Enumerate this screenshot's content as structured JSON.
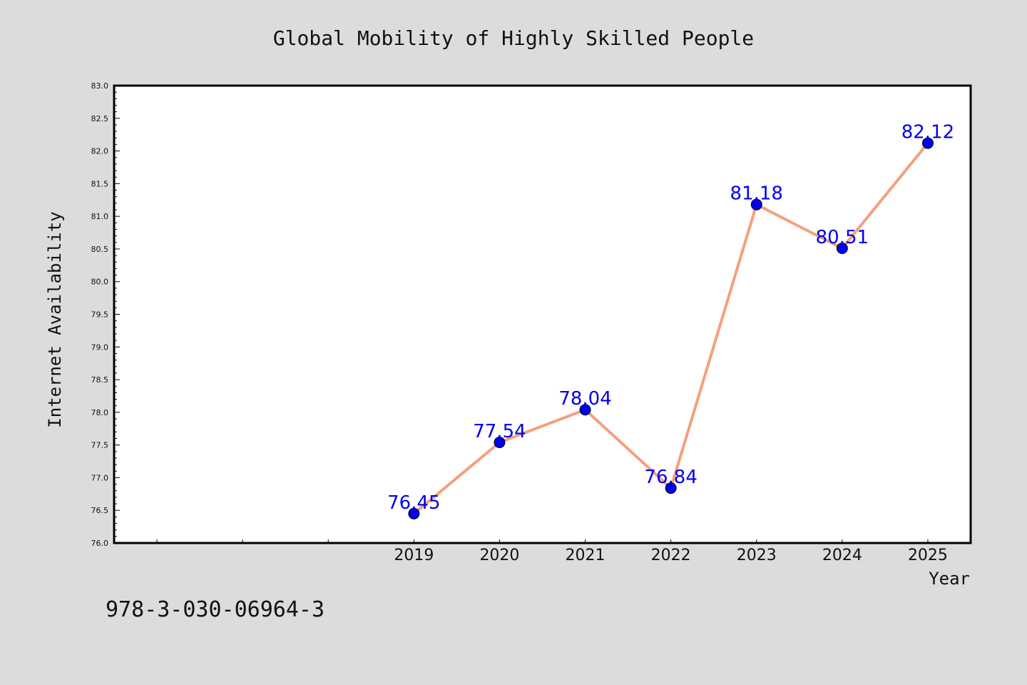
{
  "chart_data": {
    "type": "line",
    "title": "Global Mobility of Highly Skilled People",
    "xlabel": "Year",
    "ylabel": "Internet Availability",
    "x": [
      "2019",
      "2020",
      "2021",
      "2022",
      "2023",
      "2024",
      "2025"
    ],
    "series": [
      {
        "values": [
          76.45,
          77.54,
          78.04,
          76.84,
          81.18,
          80.51,
          82.12
        ],
        "line_color": "#f4a07e",
        "marker_color": "#0000ee"
      }
    ],
    "data_labels": [
      "76.45",
      "77.54",
      "78.04",
      "76.84",
      "81.18",
      "80.51",
      "82.12"
    ],
    "y_ticks": [
      "76.0",
      "76.5",
      "77.0",
      "77.5",
      "78.0",
      "78.5",
      "79.0",
      "79.5",
      "80.0",
      "80.5",
      "81.0",
      "81.5",
      "82.0",
      "82.5",
      "83.0"
    ],
    "ylim": [
      76.0,
      83.0
    ],
    "x_categories_domain_start": 2015.5,
    "x_categories_domain_end": 2025.5,
    "grid": false,
    "legend": "none",
    "label_color": "#0000ee"
  },
  "footer": {
    "isbn": "978-3-030-06964-3"
  },
  "colors": {
    "background": "#dcdcdc",
    "plot_area": "#ffffff",
    "frame": "#000000"
  }
}
